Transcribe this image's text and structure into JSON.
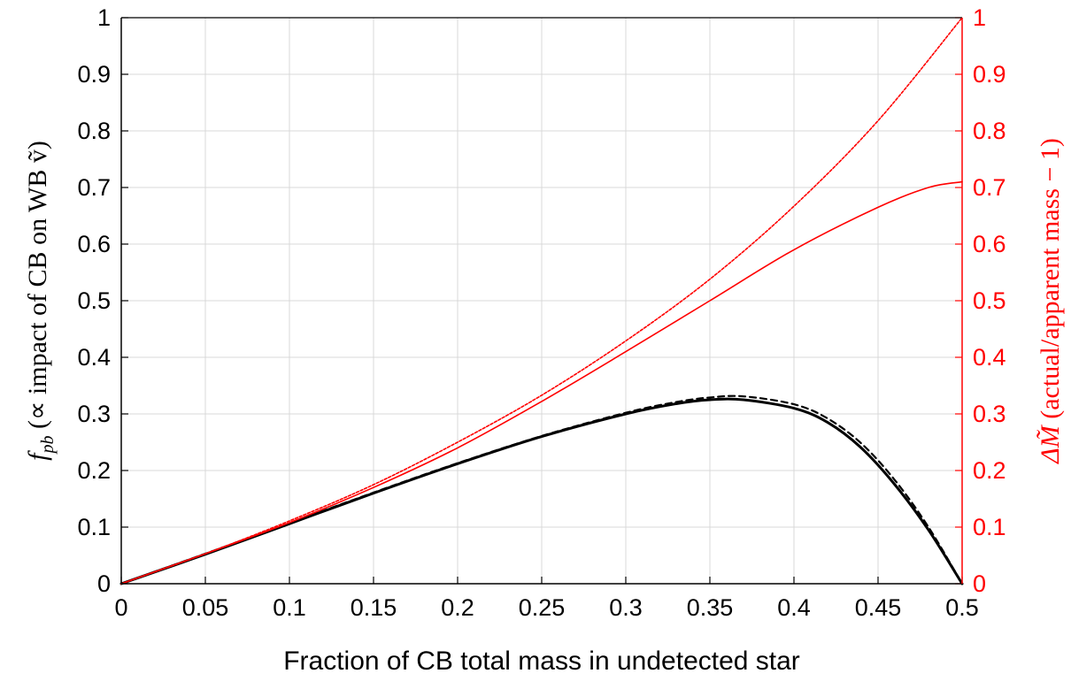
{
  "chart_data": {
    "type": "line",
    "xlabel": "Fraction of CB total mass in undetected star",
    "ylabel": "f_pb (∝ impact of CB on WB ṽ)",
    "ylabel_symbol": "f",
    "ylabel_subscript": "pb",
    "ylabel_rest": " (∝ impact of CB on WB ṽ)",
    "y2label": "ΔM̃ (actual/apparent mass − 1)",
    "y2label_symbol": "ΔM̃",
    "y2label_rest": " (actual/apparent mass − 1)",
    "xlim": [
      0,
      0.5
    ],
    "ylim": [
      0,
      1
    ],
    "y2lim": [
      0,
      1
    ],
    "xticks": [
      "0",
      "0.05",
      "0.1",
      "0.15",
      "0.2",
      "0.25",
      "0.3",
      "0.35",
      "0.4",
      "0.45",
      "0.5"
    ],
    "yticks": [
      "0",
      "0.1",
      "0.2",
      "0.3",
      "0.4",
      "0.5",
      "0.6",
      "0.7",
      "0.8",
      "0.9",
      "1"
    ],
    "y2ticks": [
      "0",
      "0.1",
      "0.2",
      "0.3",
      "0.4",
      "0.5",
      "0.6",
      "0.7",
      "0.8",
      "0.9",
      "1"
    ],
    "grid": true,
    "colors": {
      "left_axis": "#000000",
      "right_axis": "#ff0000",
      "grid": "#d9d9d9"
    },
    "series": [
      {
        "axis": "left",
        "color": "#000000",
        "style": "solid",
        "x": [
          0,
          0.05,
          0.1,
          0.15,
          0.2,
          0.25,
          0.3,
          0.33,
          0.35,
          0.37,
          0.4,
          0.42,
          0.44,
          0.46,
          0.48,
          0.5
        ],
        "y": [
          0,
          0.052,
          0.106,
          0.16,
          0.212,
          0.26,
          0.3,
          0.318,
          0.325,
          0.325,
          0.31,
          0.285,
          0.24,
          0.175,
          0.095,
          0
        ]
      },
      {
        "axis": "left",
        "color": "#000000",
        "style": "dashed",
        "x": [
          0,
          0.05,
          0.1,
          0.15,
          0.2,
          0.25,
          0.3,
          0.33,
          0.35,
          0.37,
          0.4,
          0.42,
          0.44,
          0.46,
          0.48,
          0.5
        ],
        "y": [
          0,
          0.053,
          0.107,
          0.161,
          0.213,
          0.261,
          0.302,
          0.321,
          0.329,
          0.331,
          0.317,
          0.292,
          0.248,
          0.183,
          0.1,
          0
        ]
      },
      {
        "axis": "right",
        "color": "#ff0000",
        "style": "solid",
        "x": [
          0,
          0.05,
          0.1,
          0.15,
          0.2,
          0.25,
          0.3,
          0.35,
          0.4,
          0.45,
          0.48,
          0.5
        ],
        "y": [
          0,
          0.053,
          0.108,
          0.17,
          0.24,
          0.322,
          0.41,
          0.5,
          0.59,
          0.665,
          0.7,
          0.71
        ]
      },
      {
        "axis": "right",
        "color": "#ff0000",
        "style": "dotted",
        "x": [
          0,
          0.05,
          0.1,
          0.15,
          0.2,
          0.25,
          0.3,
          0.35,
          0.4,
          0.45,
          0.5
        ],
        "y": [
          0,
          0.053,
          0.111,
          0.175,
          0.25,
          0.333,
          0.429,
          0.538,
          0.667,
          0.818,
          1.0
        ]
      }
    ]
  }
}
